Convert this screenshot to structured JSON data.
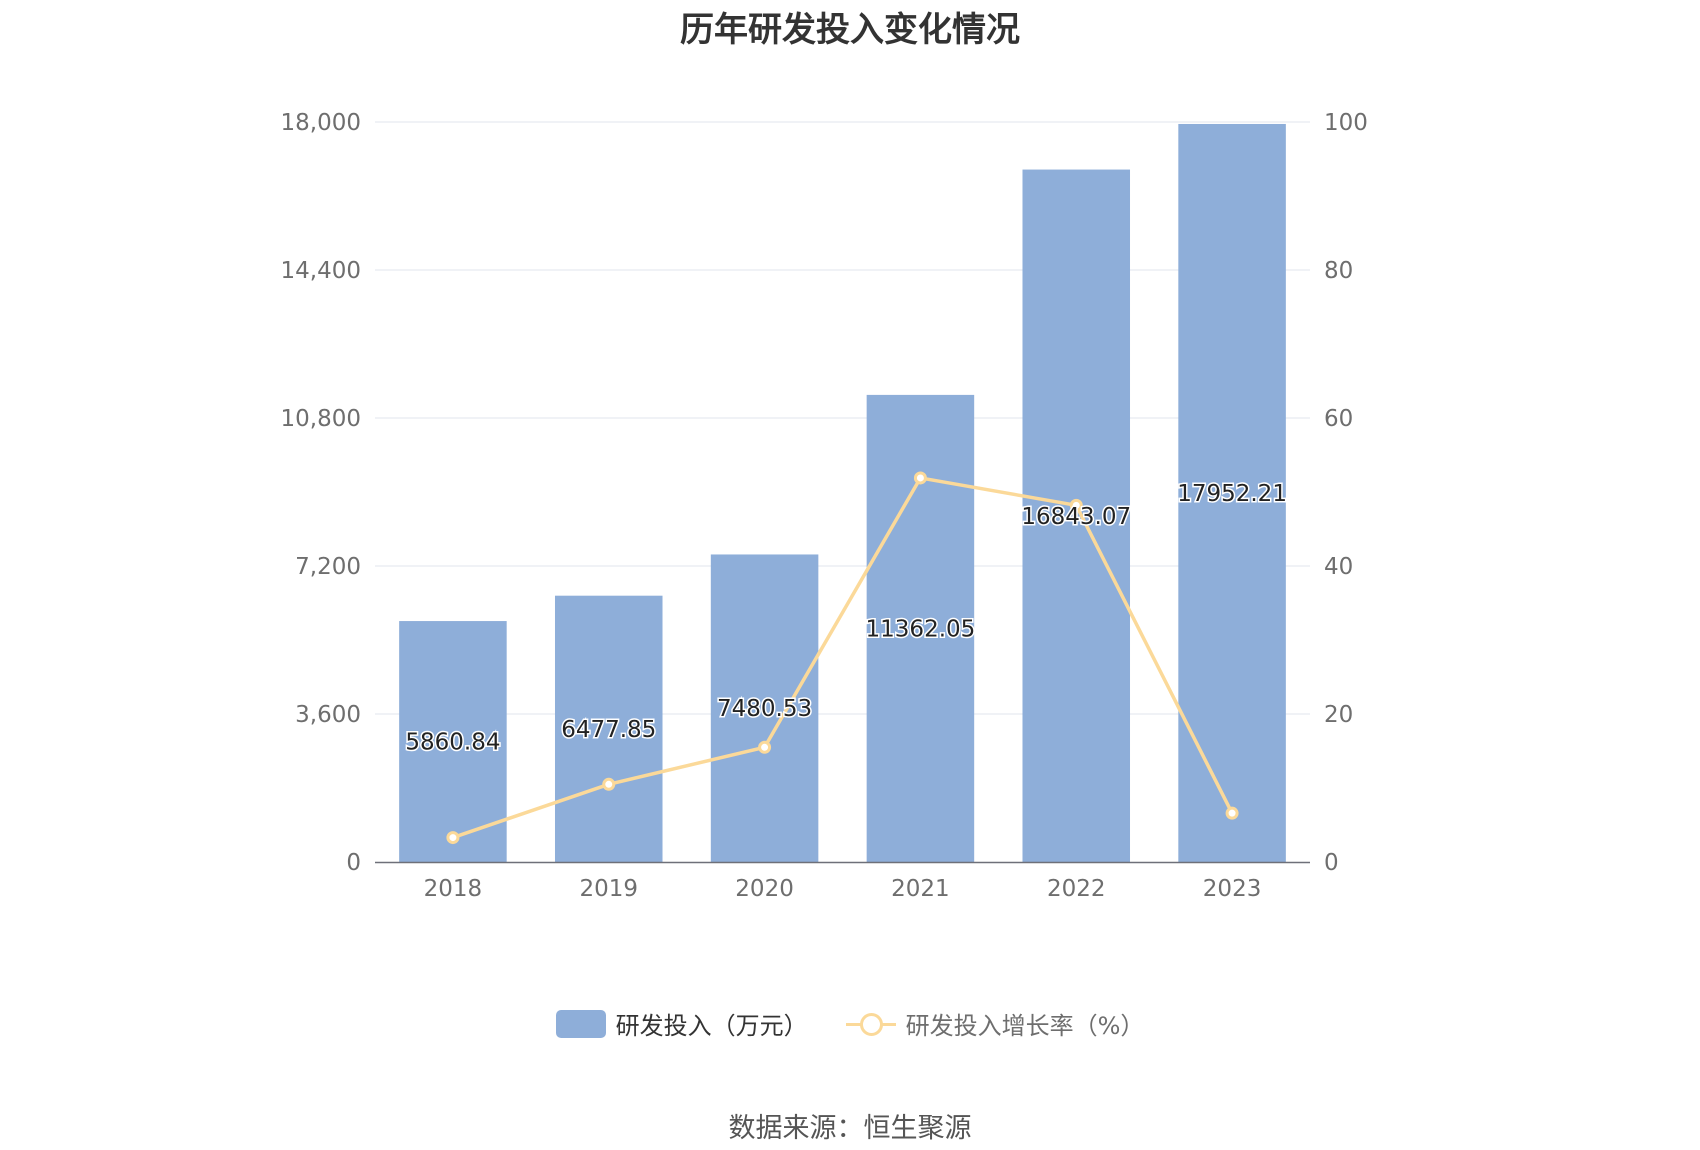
{
  "chart_data": {
    "type": "bar",
    "title": "历年研发投入变化情况",
    "categories": [
      "2018",
      "2019",
      "2020",
      "2021",
      "2022",
      "2023"
    ],
    "series": [
      {
        "name": "研发投入（万元）",
        "type": "bar",
        "axis": "left",
        "values": [
          5860.84,
          6477.85,
          7480.53,
          11362.05,
          16843.07,
          17952.21
        ],
        "labels": [
          "5860.84",
          "6477.85",
          "7480.53",
          "11362.05",
          "16843.07",
          "17952.21"
        ],
        "color": "#8eaed9"
      },
      {
        "name": "研发投入增长率（%）",
        "type": "line",
        "axis": "right",
        "values": [
          3.3,
          10.5,
          15.5,
          51.9,
          48.2,
          6.6
        ],
        "color": "#fbd999"
      }
    ],
    "y_left": {
      "ylim": [
        0,
        18000
      ],
      "ticks": [
        "0",
        "3,600",
        "7,200",
        "10,800",
        "14,400",
        "18,000"
      ]
    },
    "y_right": {
      "ylim": [
        0,
        100
      ],
      "ticks": [
        "0",
        "20",
        "40",
        "60",
        "80",
        "100"
      ]
    },
    "grid": true,
    "legend": "bottom",
    "source": "数据来源：恒生聚源"
  }
}
